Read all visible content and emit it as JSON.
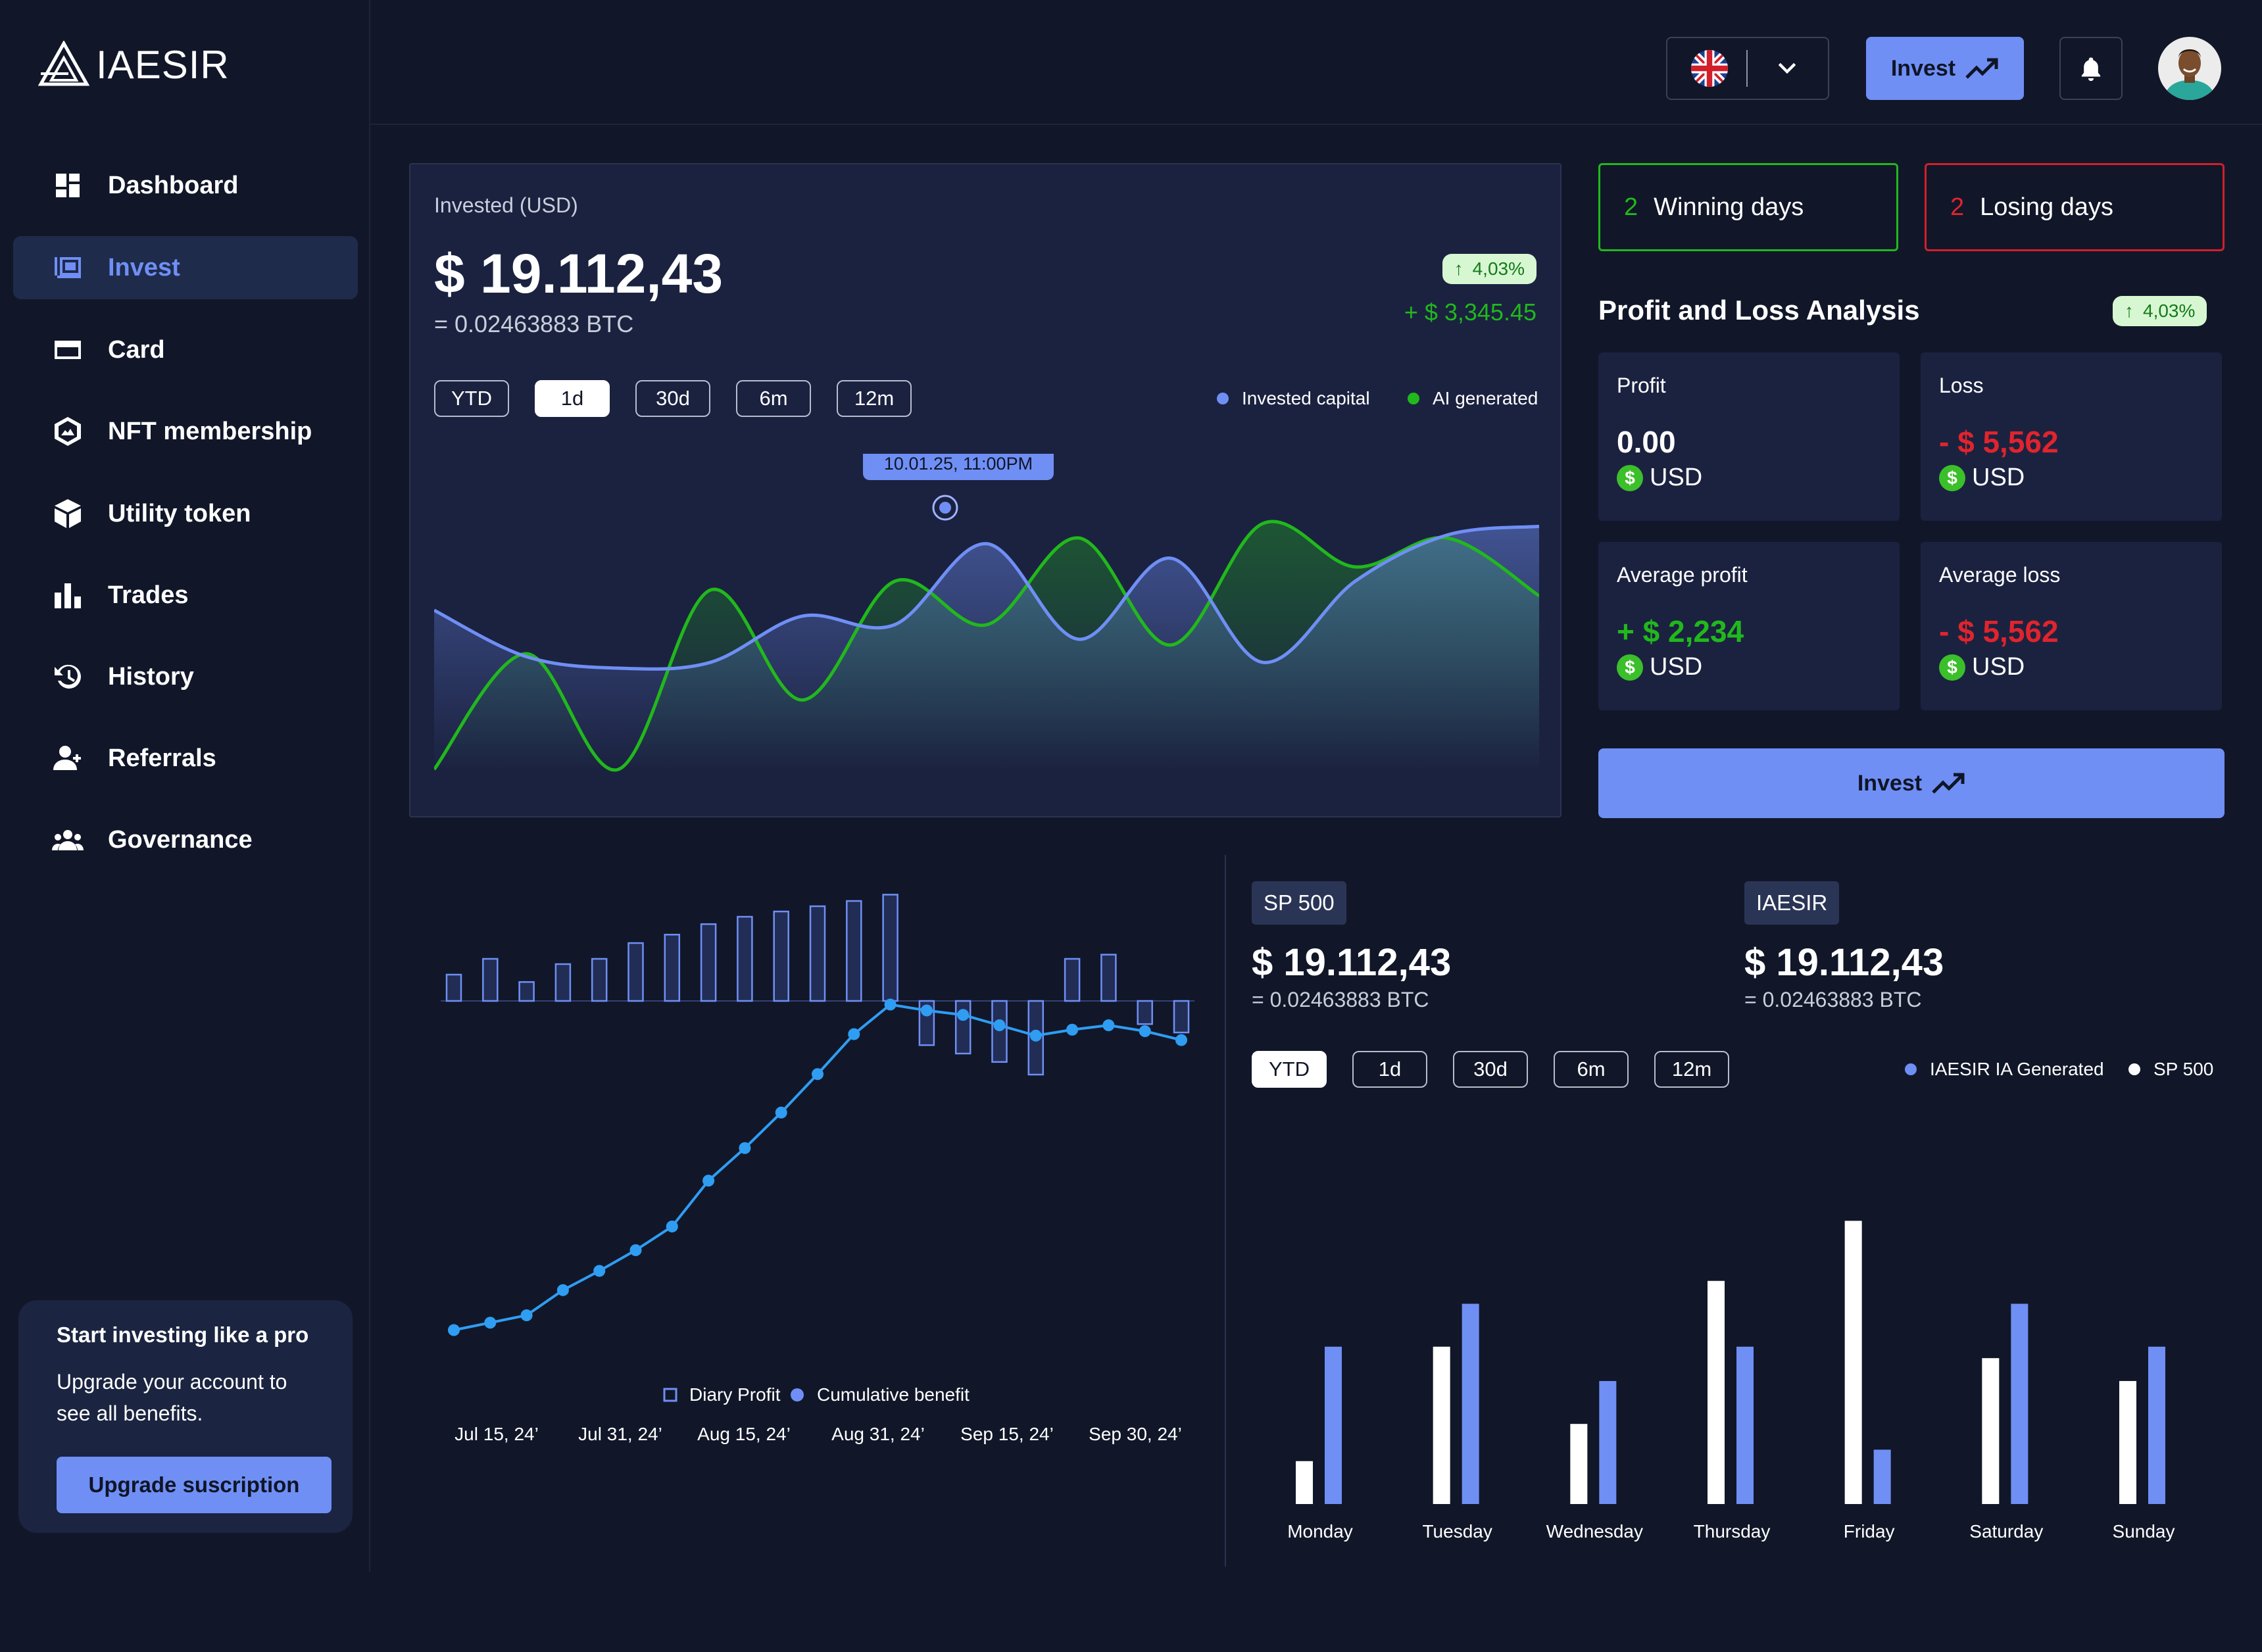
{
  "brand": {
    "name": "IAESIR"
  },
  "sidebar": {
    "items": [
      {
        "label": "Dashboard",
        "icon": "dashboard-icon"
      },
      {
        "label": "Invest",
        "icon": "wallet-icon",
        "active": true
      },
      {
        "label": "Card",
        "icon": "card-icon"
      },
      {
        "label": "NFT membership",
        "icon": "nft-icon"
      },
      {
        "label": "Utility token",
        "icon": "token-icon"
      },
      {
        "label": "Trades",
        "icon": "bar-chart-icon"
      },
      {
        "label": "History",
        "icon": "history-icon"
      },
      {
        "label": "Referrals",
        "icon": "referrals-icon"
      },
      {
        "label": "Governance",
        "icon": "governance-icon"
      }
    ],
    "promo": {
      "title": "Start investing like a pro",
      "text": "Upgrade your account to see all benefits.",
      "button": "Upgrade suscription"
    }
  },
  "header": {
    "language_icon": "uk-flag-icon",
    "invest_label": "Invest"
  },
  "invested": {
    "label": "Invested (USD)",
    "amount": "$ 19.112,43",
    "btc": "= 0.02463883 BTC",
    "change_pct": "4,03%",
    "change_amount": "+ $ 3,345.45",
    "ranges": [
      "YTD",
      "1d",
      "30d",
      "6m",
      "12m"
    ],
    "selected_range": "1d",
    "legend": [
      {
        "name": "Invested capital",
        "color": "#6f8ff5"
      },
      {
        "name": "AI generated",
        "color": "#21b81c"
      }
    ],
    "tooltip": "10.01.25, 11:00PM"
  },
  "days": {
    "winning": {
      "count": "2",
      "label": "Winning days"
    },
    "losing": {
      "count": "2",
      "label": "Losing days"
    }
  },
  "pnl": {
    "title": "Profit and Loss Analysis",
    "change_pct": "4,03%",
    "cards": [
      {
        "label": "Profit",
        "value": "0.00",
        "unit": "USD",
        "tone": "neutral"
      },
      {
        "label": "Loss",
        "value": "- $ 5,562",
        "unit": "USD",
        "tone": "neg"
      },
      {
        "label": "Average profit",
        "value": "+ $ 2,234",
        "unit": "USD",
        "tone": "pos"
      },
      {
        "label": "Average loss",
        "value": "- $ 5,562",
        "unit": "USD",
        "tone": "neg"
      }
    ],
    "invest_button": "Invest"
  },
  "profit_chart": {
    "legend": [
      "Diary Profit",
      "Cumulative benefit"
    ],
    "x_labels": [
      "Jul 15, 24’",
      "Jul 31, 24’",
      "Aug 15, 24’",
      "Aug 31, 24’",
      "Sep 15, 24’",
      "Sep 30, 24’"
    ]
  },
  "comparison": {
    "sp": {
      "tag": "SP 500",
      "amount": "$ 19.112,43",
      "btc": "= 0.02463883 BTC"
    },
    "iaesir": {
      "tag": "IAESIR",
      "amount": "$ 19.112,43",
      "btc": "= 0.02463883 BTC"
    },
    "ranges": [
      "YTD",
      "1d",
      "30d",
      "6m",
      "12m"
    ],
    "selected_range": "YTD",
    "legend": [
      {
        "name": "IAESIR IA Generated",
        "color": "#6f8ff5"
      },
      {
        "name": "SP 500",
        "color": "#ffffff"
      }
    ]
  },
  "chart_data": [
    {
      "type": "area",
      "title": "Invested (USD)",
      "series": [
        {
          "name": "Invested capital",
          "color": "#6f8ff5",
          "values": [
            0.55,
            0.39,
            0.35,
            0.37,
            0.53,
            0.5,
            0.78,
            0.45,
            0.73,
            0.37,
            0.65,
            0.81,
            0.84
          ]
        },
        {
          "name": "AI generated",
          "color": "#21b81c",
          "values": [
            0.0,
            0.4,
            0.0,
            0.62,
            0.24,
            0.65,
            0.5,
            0.8,
            0.43,
            0.85,
            0.7,
            0.8,
            0.6
          ]
        }
      ]
    },
    {
      "type": "bar",
      "title": "",
      "x_labels": [
        "Jul 15, 24’",
        "Jul 31, 24’",
        "Aug 15, 24’",
        "Aug 31, 24’",
        "Sep 15, 24’",
        "Sep 30, 24’"
      ],
      "series": [
        {
          "name": "Diary Profit",
          "values": [
            2.5,
            4,
            1.8,
            3.5,
            4,
            5.5,
            6.3,
            7.3,
            8,
            8.5,
            9,
            9.5,
            10.1,
            -4.2,
            -5,
            -5.8,
            -7,
            4,
            4.4,
            -2.2,
            -3
          ]
        },
        {
          "name": "Cumulative benefit",
          "values": [
            3,
            3.5,
            4,
            5.7,
            7,
            8.4,
            10,
            13.1,
            15.3,
            17.7,
            20.3,
            23,
            25,
            24.6,
            24.3,
            23.6,
            22.9,
            23.3,
            23.6,
            23.2,
            22.6
          ]
        }
      ]
    },
    {
      "type": "bar",
      "title": "",
      "categories": [
        "Monday",
        "Tuesday",
        "Wednesday",
        "Thursday",
        "Friday",
        "Saturday",
        "Sunday"
      ],
      "series": [
        {
          "name": "SP 500",
          "color": "#ffffff",
          "values": [
            15,
            55,
            28,
            78,
            99,
            51,
            43
          ]
        },
        {
          "name": "IAESIR IA Generated",
          "color": "#6f8ff5",
          "values": [
            55,
            70,
            43,
            55,
            19,
            70,
            55
          ]
        }
      ]
    }
  ]
}
